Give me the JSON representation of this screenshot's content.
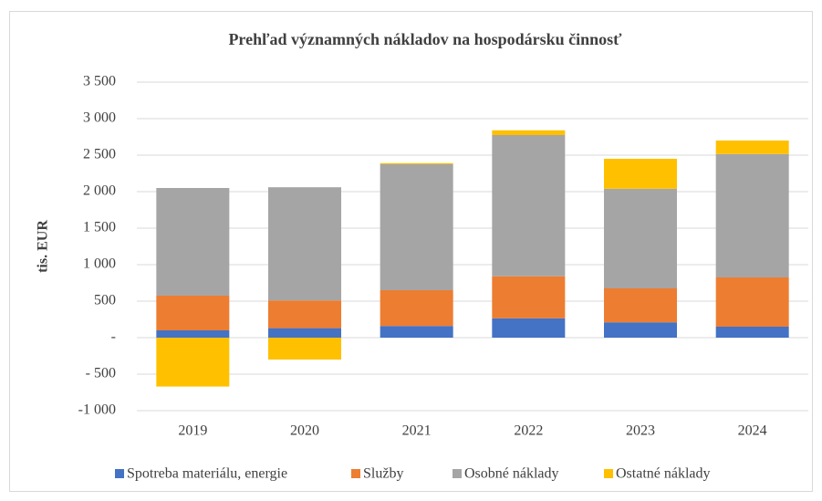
{
  "chart_data": {
    "type": "stacked_bar",
    "title": "Prehľad významných nákladov na hospodársku činnosť",
    "y_label": "tis. EUR",
    "categories": [
      "2019",
      "2020",
      "2021",
      "2022",
      "2023",
      "2024"
    ],
    "series": [
      {
        "name": "Spotreba materiálu, energie",
        "color": "#4472c4",
        "values": [
          100,
          130,
          160,
          265,
          210,
          150
        ]
      },
      {
        "name": "Služby",
        "color": "#ed7d31",
        "values": [
          475,
          380,
          490,
          575,
          465,
          675
        ]
      },
      {
        "name": "Osobné náklady",
        "color": "#a5a5a5",
        "values": [
          1475,
          1550,
          1725,
          1935,
          1365,
          1690
        ]
      },
      {
        "name": "Ostatné náklady",
        "color": "#ffc000",
        "values": [
          -670,
          -300,
          15,
          65,
          410,
          185
        ]
      }
    ],
    "ylim": [
      -1000,
      3500
    ],
    "yticks": [
      {
        "value": -1000,
        "label": "-1 000"
      },
      {
        "value": -500,
        "label": "- 500"
      },
      {
        "value": 0,
        "label": "-"
      },
      500,
      {
        "value": 1000,
        "label": "1 000"
      },
      {
        "value": 1500,
        "label": "1 500"
      },
      {
        "value": 2000,
        "label": "2 000"
      },
      {
        "value": 2500,
        "label": "2 500"
      },
      {
        "value": 3000,
        "label": "3 000"
      },
      {
        "value": 3500,
        "label": "3 500"
      }
    ],
    "grid": true,
    "legend": "bottom"
  }
}
